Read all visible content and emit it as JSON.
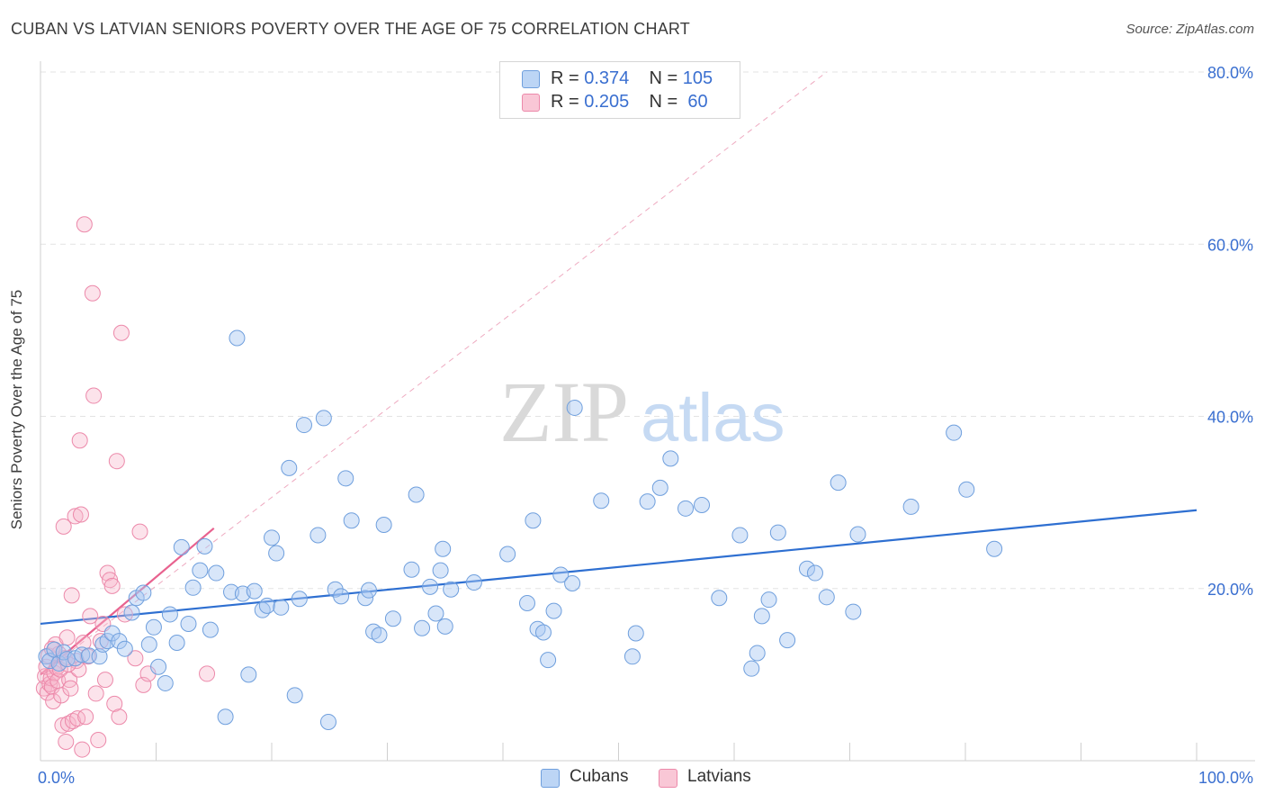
{
  "header": {
    "title": "CUBAN VS LATVIAN SENIORS POVERTY OVER THE AGE OF 75 CORRELATION CHART",
    "source": "Source: ZipAtlas.com"
  },
  "legend": {
    "rows": [
      {
        "r_label": "R =",
        "r_value": "0.374",
        "n_label": "N =",
        "n_value": "105"
      },
      {
        "r_label": "R =",
        "r_value": "0.205",
        "n_label": "N =",
        "n_value": " 60"
      }
    ],
    "bottom": [
      "Cubans",
      "Latvians"
    ]
  },
  "watermark": {
    "zip": "ZIP",
    "atlas": "atlas"
  },
  "colors": {
    "cubans_fill": "#a9c8f2",
    "cubans_stroke": "#6f9fdd",
    "cubans_line": "#2e6fd1",
    "latvians_fill": "#f7b6ca",
    "latvians_stroke": "#ec89aa",
    "latvians_line": "#e8628f",
    "tick_text": "#3a6fd0"
  },
  "chart_data": {
    "type": "scatter",
    "title": "CUBAN VS LATVIAN SENIORS POVERTY OVER THE AGE OF 75 CORRELATION CHART",
    "xlabel": "",
    "ylabel": "Seniors Poverty Over the Age of 75",
    "xlim": [
      0,
      100
    ],
    "ylim": [
      0,
      80
    ],
    "x_tick_labels": [
      "0.0%",
      "100.0%"
    ],
    "y_ticks": [
      20,
      40,
      60,
      80
    ],
    "y_tick_labels": [
      "20.0%",
      "40.0%",
      "60.0%",
      "80.0%"
    ],
    "grid": true,
    "legend_position": "top-center",
    "series": [
      {
        "name": "Cubans",
        "r": 0.374,
        "n": 105,
        "trend": {
          "x": [
            0,
            100
          ],
          "y": [
            15.9,
            29.1
          ]
        },
        "points": [
          [
            0.5,
            12.1
          ],
          [
            0.8,
            11.6
          ],
          [
            1.2,
            12.9
          ],
          [
            1.6,
            11.3
          ],
          [
            2.0,
            12.6
          ],
          [
            2.3,
            11.8
          ],
          [
            3.0,
            11.9
          ],
          [
            3.6,
            12.3
          ],
          [
            4.2,
            12.2
          ],
          [
            5.1,
            12.1
          ],
          [
            5.4,
            13.5
          ],
          [
            5.8,
            13.9
          ],
          [
            6.2,
            14.8
          ],
          [
            6.8,
            13.9
          ],
          [
            7.3,
            13.0
          ],
          [
            7.9,
            17.2
          ],
          [
            8.3,
            18.9
          ],
          [
            8.9,
            19.5
          ],
          [
            9.4,
            13.5
          ],
          [
            9.8,
            15.5
          ],
          [
            10.2,
            10.9
          ],
          [
            10.8,
            9.0
          ],
          [
            11.2,
            17.0
          ],
          [
            11.8,
            13.7
          ],
          [
            12.2,
            24.8
          ],
          [
            12.8,
            15.9
          ],
          [
            13.2,
            20.1
          ],
          [
            13.8,
            22.1
          ],
          [
            14.2,
            24.9
          ],
          [
            14.7,
            15.2
          ],
          [
            15.2,
            21.8
          ],
          [
            16.0,
            5.1
          ],
          [
            16.5,
            19.6
          ],
          [
            17.0,
            49.1
          ],
          [
            17.5,
            19.4
          ],
          [
            18.0,
            10.0
          ],
          [
            18.5,
            19.7
          ],
          [
            19.2,
            17.5
          ],
          [
            19.6,
            18.0
          ],
          [
            20.0,
            25.9
          ],
          [
            20.4,
            24.1
          ],
          [
            20.8,
            17.8
          ],
          [
            21.5,
            34.0
          ],
          [
            22.0,
            7.6
          ],
          [
            22.4,
            18.8
          ],
          [
            22.8,
            39.0
          ],
          [
            24.0,
            26.2
          ],
          [
            24.5,
            39.8
          ],
          [
            24.9,
            4.5
          ],
          [
            25.5,
            19.9
          ],
          [
            26.0,
            19.1
          ],
          [
            26.4,
            32.8
          ],
          [
            26.9,
            27.9
          ],
          [
            28.1,
            18.9
          ],
          [
            28.4,
            19.8
          ],
          [
            28.8,
            15.0
          ],
          [
            29.3,
            14.6
          ],
          [
            29.7,
            27.4
          ],
          [
            30.5,
            16.5
          ],
          [
            32.1,
            22.2
          ],
          [
            32.5,
            30.9
          ],
          [
            33.0,
            15.4
          ],
          [
            33.7,
            20.2
          ],
          [
            34.2,
            17.1
          ],
          [
            34.6,
            22.1
          ],
          [
            35.0,
            15.6
          ],
          [
            34.8,
            24.6
          ],
          [
            35.5,
            19.9
          ],
          [
            37.5,
            20.7
          ],
          [
            40.4,
            24.0
          ],
          [
            42.1,
            18.3
          ],
          [
            42.6,
            27.9
          ],
          [
            43.0,
            15.3
          ],
          [
            43.5,
            14.9
          ],
          [
            43.9,
            11.7
          ],
          [
            44.4,
            17.4
          ],
          [
            45.0,
            21.6
          ],
          [
            46.0,
            20.6
          ],
          [
            46.2,
            41.0
          ],
          [
            48.5,
            30.2
          ],
          [
            51.2,
            12.1
          ],
          [
            51.5,
            14.8
          ],
          [
            52.5,
            30.1
          ],
          [
            53.6,
            31.7
          ],
          [
            54.5,
            35.1
          ],
          [
            55.8,
            29.3
          ],
          [
            57.2,
            29.7
          ],
          [
            58.7,
            18.9
          ],
          [
            60.5,
            26.2
          ],
          [
            61.5,
            10.7
          ],
          [
            62.0,
            12.5
          ],
          [
            62.4,
            16.8
          ],
          [
            63.0,
            18.7
          ],
          [
            63.8,
            26.5
          ],
          [
            64.6,
            14.0
          ],
          [
            66.3,
            22.3
          ],
          [
            67.0,
            21.8
          ],
          [
            68.0,
            19.0
          ],
          [
            69.0,
            32.3
          ],
          [
            70.3,
            17.3
          ],
          [
            70.7,
            26.3
          ],
          [
            75.3,
            29.5
          ],
          [
            79.0,
            38.1
          ],
          [
            80.1,
            31.5
          ],
          [
            82.5,
            24.6
          ]
        ]
      },
      {
        "name": "Latvians",
        "r": 0.205,
        "n": 60,
        "trend": {
          "x": [
            0,
            15
          ],
          "y": [
            10.0,
            27.0
          ]
        },
        "trend_extended": {
          "x": [
            0,
            68
          ],
          "y": [
            10.0,
            80.0
          ]
        },
        "points": [
          [
            0.3,
            8.4
          ],
          [
            0.4,
            9.8
          ],
          [
            0.5,
            10.9
          ],
          [
            0.6,
            7.9
          ],
          [
            0.7,
            12.2
          ],
          [
            0.8,
            8.9
          ],
          [
            0.9,
            9.6
          ],
          [
            1.0,
            8.6
          ],
          [
            1.1,
            6.9
          ],
          [
            1.2,
            10.2
          ],
          [
            1.3,
            13.5
          ],
          [
            1.4,
            10.8
          ],
          [
            1.5,
            9.3
          ],
          [
            1.6,
            12.4
          ],
          [
            1.7,
            10.6
          ],
          [
            1.8,
            7.6
          ],
          [
            1.9,
            4.1
          ],
          [
            2.0,
            27.2
          ],
          [
            2.1,
            11.9
          ],
          [
            2.2,
            2.2
          ],
          [
            2.3,
            14.3
          ],
          [
            2.4,
            4.3
          ],
          [
            2.5,
            9.4
          ],
          [
            2.6,
            8.4
          ],
          [
            2.7,
            19.2
          ],
          [
            2.8,
            4.6
          ],
          [
            3.0,
            28.4
          ],
          [
            3.1,
            11.6
          ],
          [
            3.2,
            4.9
          ],
          [
            3.3,
            10.6
          ],
          [
            3.4,
            37.2
          ],
          [
            3.5,
            28.6
          ],
          [
            3.6,
            1.3
          ],
          [
            3.7,
            13.7
          ],
          [
            3.8,
            62.3
          ],
          [
            3.9,
            5.1
          ],
          [
            4.1,
            12.1
          ],
          [
            4.3,
            16.8
          ],
          [
            4.5,
            54.3
          ],
          [
            4.6,
            42.4
          ],
          [
            4.8,
            7.8
          ],
          [
            5.0,
            2.4
          ],
          [
            5.2,
            13.9
          ],
          [
            5.4,
            15.9
          ],
          [
            5.6,
            9.4
          ],
          [
            5.8,
            21.8
          ],
          [
            6.0,
            21.0
          ],
          [
            6.2,
            20.3
          ],
          [
            6.4,
            6.6
          ],
          [
            6.6,
            34.8
          ],
          [
            6.8,
            5.1
          ],
          [
            7.0,
            49.7
          ],
          [
            7.3,
            17.0
          ],
          [
            8.2,
            11.9
          ],
          [
            8.6,
            26.6
          ],
          [
            8.9,
            8.8
          ],
          [
            9.3,
            10.1
          ],
          [
            14.4,
            10.1
          ],
          [
            1.0,
            13.0
          ],
          [
            2.4,
            11.2
          ]
        ]
      }
    ]
  }
}
